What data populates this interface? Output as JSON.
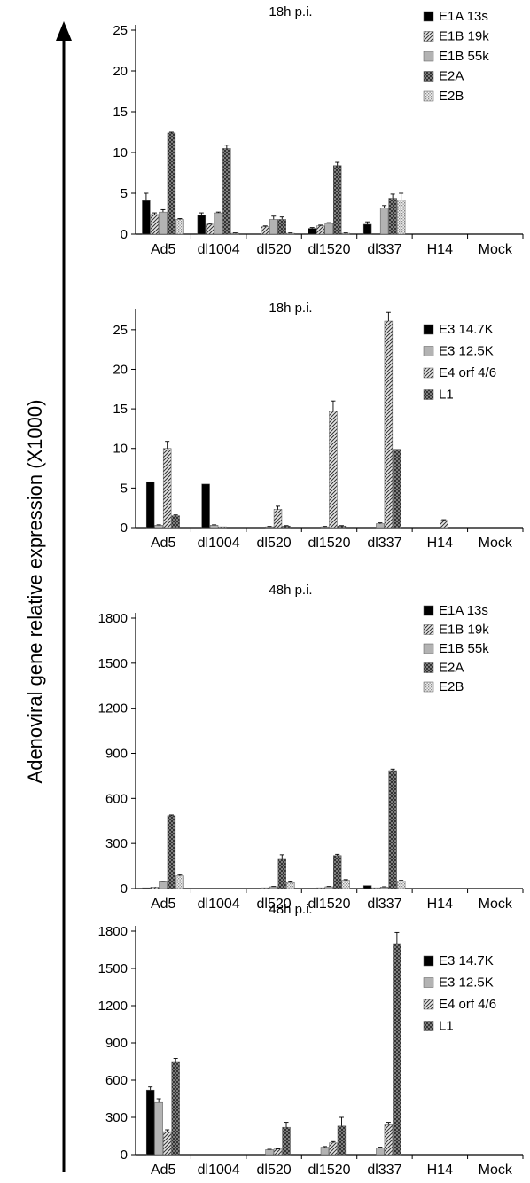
{
  "figure": {
    "ylabel": "Adenoviral gene relative expression (X1000)"
  },
  "chart_data": [
    {
      "type": "bar",
      "title": "18h p.i.",
      "categories": [
        "Ad5",
        "dl1004",
        "dl520",
        "dl1520",
        "dl337",
        "H14",
        "Mock"
      ],
      "ylim": [
        0,
        25
      ],
      "yticks": [
        "0",
        "5",
        "10",
        "15",
        "20",
        "25"
      ],
      "legend_position": "top-right",
      "series": [
        {
          "name": "E1A 13s",
          "pattern": "solid-black",
          "values": [
            4.1,
            2.3,
            0,
            0.7,
            1.2,
            0,
            0
          ],
          "errors": [
            0.9,
            0.3,
            0,
            0.1,
            0.3,
            0,
            0
          ]
        },
        {
          "name": "E1B 19k",
          "pattern": "diag",
          "values": [
            2.4,
            1.2,
            0.9,
            1.0,
            0,
            0,
            0
          ],
          "errors": [
            0.2,
            0.1,
            0.1,
            0.1,
            0,
            0,
            0
          ]
        },
        {
          "name": "E1B 55k",
          "pattern": "solid-gray",
          "values": [
            2.7,
            2.6,
            1.8,
            1.3,
            3.2,
            0,
            0
          ],
          "errors": [
            0.3,
            0.1,
            0.4,
            0.1,
            0.3,
            0,
            0
          ]
        },
        {
          "name": "E2A",
          "pattern": "crosshatch",
          "values": [
            12.4,
            10.5,
            1.8,
            8.4,
            4.4,
            0,
            0
          ],
          "errors": [
            0.1,
            0.4,
            0.3,
            0.4,
            0.5,
            0,
            0
          ]
        },
        {
          "name": "E2B",
          "pattern": "dots",
          "values": [
            1.8,
            0.1,
            0.1,
            0.1,
            4.2,
            0,
            0
          ],
          "errors": [
            0.1,
            0.05,
            0.05,
            0.05,
            0.8,
            0,
            0
          ]
        }
      ]
    },
    {
      "type": "bar",
      "title": "18h p.i.",
      "categories": [
        "Ad5",
        "dl1004",
        "dl520",
        "dl1520",
        "dl337",
        "H14",
        "Mock"
      ],
      "ylim": [
        0,
        27
      ],
      "yticks": [
        "0",
        "5",
        "10",
        "15",
        "20",
        "25"
      ],
      "legend_position": "top-right",
      "series": [
        {
          "name": "E3 14.7K",
          "pattern": "solid-black",
          "values": [
            5.8,
            5.5,
            0,
            0,
            0,
            0,
            0
          ],
          "errors": [
            0,
            0,
            0,
            0,
            0,
            0,
            0
          ]
        },
        {
          "name": "E3 12.5K",
          "pattern": "solid-gray",
          "values": [
            0.3,
            0.3,
            0.1,
            0.1,
            0.5,
            0,
            0
          ],
          "errors": [
            0.05,
            0.05,
            0.05,
            0.05,
            0.1,
            0,
            0
          ]
        },
        {
          "name": "E4 orf 4/6",
          "pattern": "diag",
          "values": [
            10.0,
            0.1,
            2.3,
            14.7,
            26.1,
            0.9,
            0
          ],
          "errors": [
            0.9,
            0,
            0.4,
            1.3,
            1.1,
            0.1,
            0
          ]
        },
        {
          "name": "L1",
          "pattern": "crosshatch",
          "values": [
            1.5,
            0,
            0.2,
            0.2,
            9.9,
            0,
            0
          ],
          "errors": [
            0.1,
            0,
            0.05,
            0.05,
            0,
            0,
            0
          ]
        }
      ]
    },
    {
      "type": "bar",
      "title": "48h p.i.",
      "categories": [
        "Ad5",
        "dl1004",
        "dl520",
        "dl1520",
        "dl337",
        "H14",
        "Mock"
      ],
      "ylim": [
        0,
        1800
      ],
      "yticks": [
        "0",
        "300",
        "600",
        "900",
        "1200",
        "1500",
        "1800"
      ],
      "legend_position": "top-right",
      "series": [
        {
          "name": "E1A 13s",
          "pattern": "solid-black",
          "values": [
            5,
            0,
            0,
            0,
            20,
            0,
            0
          ],
          "errors": [
            0,
            0,
            0,
            0,
            0,
            0,
            0
          ]
        },
        {
          "name": "E1B 19k",
          "pattern": "diag",
          "values": [
            10,
            0,
            5,
            5,
            5,
            0,
            0
          ],
          "errors": [
            0,
            0,
            0,
            0,
            0,
            0,
            0
          ]
        },
        {
          "name": "E1B 55k",
          "pattern": "solid-gray",
          "values": [
            45,
            0,
            12,
            12,
            10,
            0,
            0
          ],
          "errors": [
            3,
            0,
            2,
            2,
            2,
            0,
            0
          ]
        },
        {
          "name": "E2A",
          "pattern": "crosshatch",
          "values": [
            485,
            0,
            195,
            220,
            785,
            0,
            0
          ],
          "errors": [
            5,
            0,
            30,
            8,
            10,
            0,
            0
          ]
        },
        {
          "name": "E2B",
          "pattern": "dots",
          "values": [
            85,
            0,
            40,
            55,
            50,
            0,
            0
          ],
          "errors": [
            8,
            0,
            5,
            5,
            5,
            0,
            0
          ]
        }
      ]
    },
    {
      "type": "bar",
      "title": "48h p.i.",
      "categories": [
        "Ad5",
        "dl1004",
        "dl520",
        "dl1520",
        "dl337",
        "H14",
        "Mock"
      ],
      "ylim": [
        0,
        1800
      ],
      "yticks": [
        "0",
        "300",
        "600",
        "900",
        "1200",
        "1500",
        "1800"
      ],
      "legend_position": "top-right",
      "series": [
        {
          "name": "E3 14.7K",
          "pattern": "solid-black",
          "values": [
            520,
            0,
            0,
            0,
            0,
            0,
            0
          ],
          "errors": [
            25,
            0,
            0,
            0,
            0,
            0,
            0
          ]
        },
        {
          "name": "E3 12.5K",
          "pattern": "solid-gray",
          "values": [
            420,
            0,
            40,
            60,
            55,
            0,
            0
          ],
          "errors": [
            30,
            0,
            3,
            5,
            5,
            0,
            0
          ]
        },
        {
          "name": "E4 orf 4/6",
          "pattern": "diag",
          "values": [
            185,
            0,
            45,
            95,
            240,
            0,
            0
          ],
          "errors": [
            15,
            0,
            3,
            10,
            20,
            0,
            0
          ]
        },
        {
          "name": "L1",
          "pattern": "crosshatch",
          "values": [
            750,
            0,
            220,
            230,
            1700,
            0,
            0
          ],
          "errors": [
            25,
            0,
            40,
            70,
            90,
            0,
            0
          ]
        }
      ]
    }
  ]
}
